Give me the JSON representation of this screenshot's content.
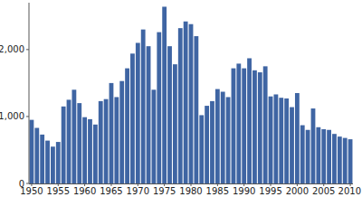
{
  "chart_data": {
    "type": "bar",
    "categories": [
      "1950",
      null,
      null,
      null,
      null,
      "1955",
      null,
      null,
      null,
      null,
      "1960",
      null,
      null,
      null,
      null,
      "1965",
      null,
      null,
      null,
      null,
      "1970",
      null,
      null,
      null,
      null,
      "1975",
      null,
      null,
      null,
      null,
      "1980",
      null,
      null,
      null,
      null,
      "1985",
      null,
      null,
      null,
      null,
      "1990",
      null,
      null,
      null,
      null,
      "1995",
      null,
      null,
      null,
      null,
      "2000",
      null,
      null,
      null,
      null,
      "2005",
      null,
      null,
      null,
      null,
      "2010"
    ],
    "values": [
      950,
      830,
      730,
      640,
      550,
      620,
      1150,
      1250,
      1400,
      1200,
      990,
      960,
      880,
      1230,
      1260,
      1500,
      1290,
      1530,
      1720,
      1940,
      2100,
      2300,
      2050,
      1400,
      2260,
      2640,
      2050,
      1780,
      2320,
      2420,
      2380,
      2200,
      1020,
      1160,
      1230,
      1410,
      1370,
      1290,
      1720,
      1790,
      1720,
      1870,
      1690,
      1660,
      1750,
      1300,
      1330,
      1280,
      1270,
      1140,
      1350,
      870,
      800,
      1120,
      840,
      810,
      800,
      740,
      700,
      680,
      660
    ],
    "color": "#3f65a3",
    "ylim": [
      0,
      2700
    ],
    "yticks": [
      0,
      {
        "value": 1000,
        "label": "1,000"
      },
      {
        "value": 2000,
        "label": "2,000"
      }
    ],
    "grid": false
  }
}
